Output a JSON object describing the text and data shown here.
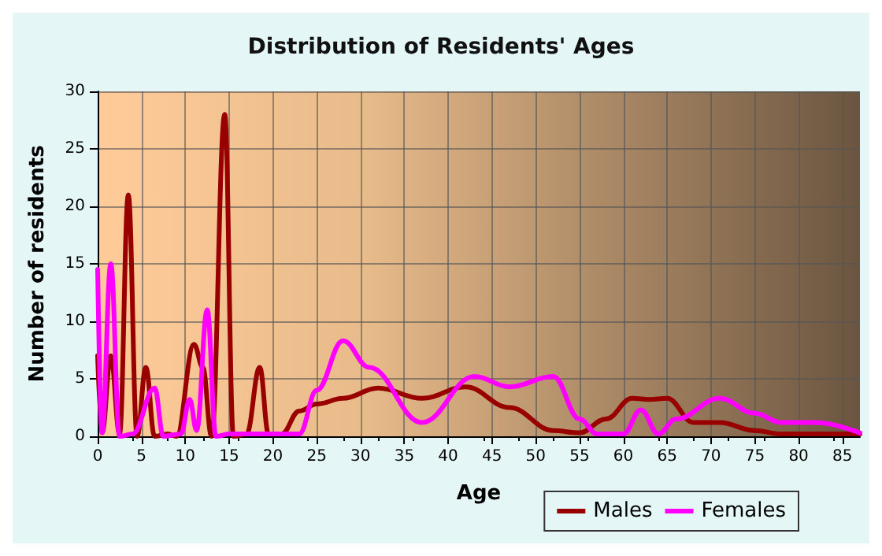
{
  "chart_data": {
    "type": "line",
    "title": "Distribution of Residents' Ages",
    "xlabel": "Age",
    "ylabel": "Number of residents",
    "xlim": [
      0,
      87
    ],
    "xticks": [
      0,
      5,
      10,
      15,
      20,
      25,
      30,
      35,
      40,
      45,
      50,
      55,
      60,
      65,
      70,
      75,
      80,
      85
    ],
    "ylim": [
      0,
      30
    ],
    "yticks": [
      0,
      5,
      10,
      15,
      20,
      25,
      30
    ],
    "grid": true,
    "legend": "bottom right",
    "marker": "none",
    "line_style": "solid",
    "series": [
      {
        "name": "Males",
        "color": "#990000",
        "x": [
          0,
          0.5,
          1.5,
          2.5,
          3.5,
          4.5,
          5.5,
          6.5,
          8,
          9,
          11,
          12,
          13,
          14.5,
          15.5,
          17,
          18.5,
          19.5,
          21,
          23,
          25,
          28,
          32,
          37,
          42,
          47,
          52,
          55,
          58,
          61,
          63,
          65,
          68,
          71,
          75,
          78,
          87
        ],
        "values": [
          7,
          0.3,
          7,
          0.2,
          21,
          0,
          6,
          0,
          0.2,
          0,
          8,
          6,
          0,
          28,
          0,
          0.2,
          6,
          0.2,
          0.2,
          2.2,
          2.8,
          3.3,
          4.2,
          3.3,
          4.3,
          2.5,
          0.5,
          0.3,
          1.5,
          3.3,
          3.2,
          3.3,
          1.2,
          1.2,
          0.5,
          0.2,
          0.2
        ]
      },
      {
        "name": "Females",
        "color": "#ff00ff",
        "x": [
          0,
          0.5,
          1.5,
          2.5,
          4,
          6.5,
          7.5,
          9.5,
          10.5,
          11.3,
          12.5,
          13.5,
          15,
          23,
          25,
          28,
          31,
          37,
          43,
          47,
          52,
          55,
          57,
          60,
          62,
          64,
          66,
          71,
          75,
          78,
          82,
          87
        ],
        "values": [
          14.5,
          0.3,
          15,
          0,
          0.2,
          4.2,
          0,
          0.2,
          3.2,
          0.5,
          11,
          0,
          0.2,
          0.2,
          4,
          8.3,
          6,
          1.2,
          5.2,
          4.3,
          5.2,
          1.5,
          0.2,
          0.2,
          2.3,
          0.2,
          1.5,
          3.3,
          2,
          1.2,
          1.2,
          0.3
        ]
      }
    ]
  }
}
